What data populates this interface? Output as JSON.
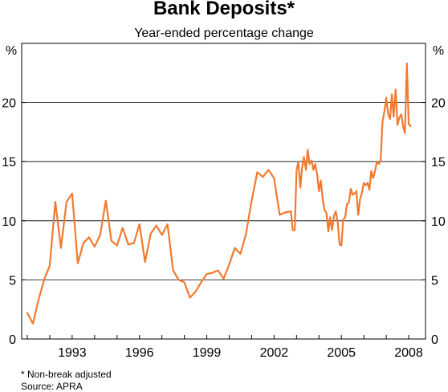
{
  "chart_data": {
    "type": "line",
    "title": "Bank Deposits*",
    "subtitle": "Year-ended percentage change",
    "y_unit_left": "%",
    "y_unit_right": "%",
    "ylim": [
      0,
      25
    ],
    "yticks": [
      0,
      5,
      10,
      15,
      20
    ],
    "xlim": [
      1990.75,
      2008.75
    ],
    "xticks": [
      {
        "value": 1993.0,
        "label": "1993"
      },
      {
        "value": 1996.0,
        "label": "1996"
      },
      {
        "value": 1999.0,
        "label": "1999"
      },
      {
        "value": 2002.0,
        "label": "2002"
      },
      {
        "value": 2005.0,
        "label": "2005"
      },
      {
        "value": 2008.0,
        "label": "2008"
      }
    ],
    "grid": true,
    "line_color": "#f07a30",
    "series": [
      {
        "x": [
          1991.0,
          1991.25,
          1991.5,
          1991.75,
          1992.0,
          1992.25,
          1992.5,
          1992.75,
          1993.0,
          1993.25,
          1993.5,
          1993.75,
          1994.0,
          1994.25,
          1994.5,
          1994.75,
          1995.0,
          1995.25,
          1995.5,
          1995.75,
          1996.0,
          1996.25,
          1996.5,
          1996.75,
          1997.0,
          1997.25,
          1997.5,
          1997.75,
          1998.0,
          1998.25,
          1998.5,
          1998.75,
          1999.0,
          1999.25,
          1999.5,
          1999.75,
          2000.0,
          2000.25,
          2000.5,
          2000.75,
          2001.0,
          2001.25,
          2001.5,
          2001.75,
          2002.0,
          2002.25,
          2002.5,
          2002.75,
          2002.83,
          2002.92,
          2003.0,
          2003.08,
          2003.17,
          2003.25,
          2003.33,
          2003.42,
          2003.5,
          2003.58,
          2003.67,
          2003.75,
          2003.83,
          2003.92,
          2004.0,
          2004.08,
          2004.17,
          2004.25,
          2004.33,
          2004.42,
          2004.5,
          2004.58,
          2004.67,
          2004.75,
          2004.83,
          2004.92,
          2005.0,
          2005.08,
          2005.17,
          2005.25,
          2005.33,
          2005.42,
          2005.5,
          2005.58,
          2005.67,
          2005.75,
          2005.83,
          2005.92,
          2006.0,
          2006.08,
          2006.17,
          2006.25,
          2006.33,
          2006.42,
          2006.5,
          2006.58,
          2006.67,
          2006.75,
          2006.83,
          2006.92,
          2007.0,
          2007.08,
          2007.17,
          2007.25,
          2007.33,
          2007.42,
          2007.5,
          2007.58,
          2007.67,
          2007.75,
          2007.83,
          2007.92,
          2008.0,
          2008.08
        ],
        "values": [
          2.2,
          1.3,
          3.3,
          5.0,
          6.2,
          11.6,
          7.7,
          11.6,
          12.3,
          6.4,
          8.1,
          8.6,
          7.8,
          8.8,
          11.7,
          8.3,
          7.9,
          9.4,
          8.0,
          8.1,
          9.7,
          6.5,
          8.9,
          9.6,
          8.8,
          9.7,
          5.8,
          5.0,
          4.8,
          3.5,
          4.0,
          4.8,
          5.5,
          5.6,
          5.8,
          5.1,
          6.3,
          7.7,
          7.2,
          8.9,
          11.7,
          14.1,
          13.7,
          14.3,
          13.6,
          10.5,
          10.7,
          10.8,
          9.2,
          9.2,
          14.2,
          15.0,
          12.8,
          14.5,
          15.4,
          14.3,
          16.0,
          14.8,
          15.1,
          14.3,
          14.8,
          13.9,
          12.5,
          13.4,
          11.8,
          10.9,
          10.7,
          9.1,
          10.3,
          9.2,
          10.4,
          10.8,
          10.0,
          8.0,
          7.9,
          10.1,
          10.3,
          11.4,
          11.5,
          12.7,
          12.2,
          12.3,
          12.5,
          10.5,
          11.8,
          12.4,
          13.2,
          13.0,
          13.2,
          12.6,
          14.2,
          13.6,
          14.2,
          15.0,
          14.8,
          15.1,
          18.3,
          19.3,
          20.4,
          19.1,
          18.6,
          20.7,
          18.8,
          21.1,
          18.1,
          18.7,
          19.0,
          18.0,
          17.4,
          23.3,
          18.2,
          18.0
        ]
      }
    ]
  },
  "footnote": "*  Non-break adjusted",
  "source": "Source: APRA"
}
